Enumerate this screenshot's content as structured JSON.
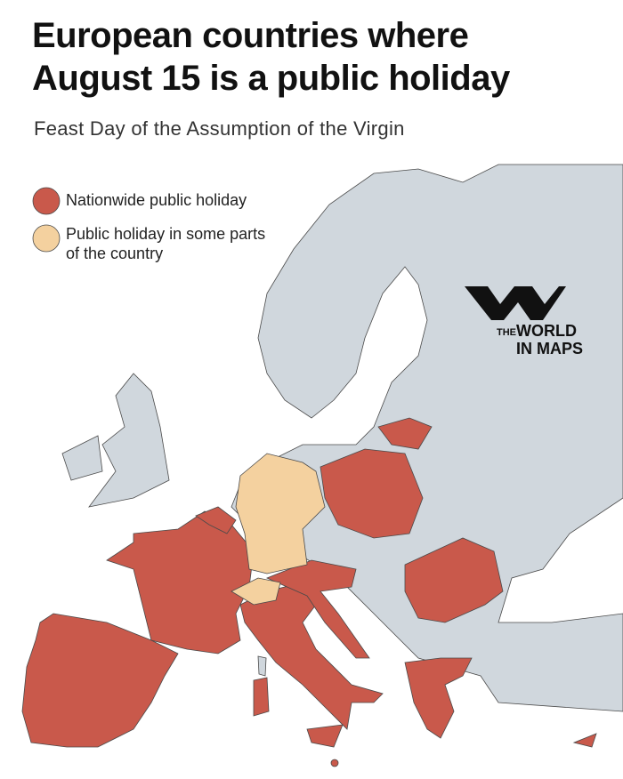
{
  "header": {
    "title_lines": [
      "European countries where",
      "August 15 is a public holiday"
    ],
    "subtitle": "Feast Day of the Assumption of the Virgin"
  },
  "legend": [
    {
      "label": "Nationwide public holiday",
      "color": "#c9594b"
    },
    {
      "label": "Public holiday in some parts of the country",
      "color": "#f4d19f"
    }
  ],
  "logo": {
    "prefix": "THE",
    "line1": "WORLD",
    "line2": "IN MAPS"
  }
}
